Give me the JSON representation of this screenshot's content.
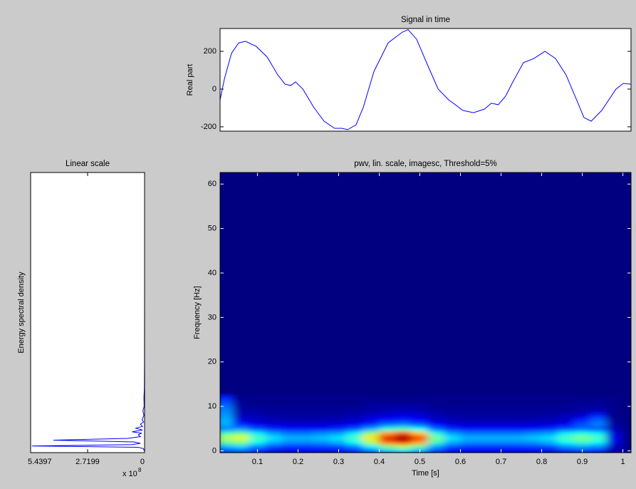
{
  "chart_data": [
    {
      "type": "line",
      "title": "Signal in time",
      "ylabel": "Real part",
      "color": "#0000ff",
      "x": [
        0.008,
        0.019,
        0.036,
        0.054,
        0.071,
        0.097,
        0.124,
        0.15,
        0.168,
        0.182,
        0.194,
        0.212,
        0.238,
        0.264,
        0.29,
        0.308,
        0.322,
        0.343,
        0.361,
        0.387,
        0.422,
        0.457,
        0.471,
        0.492,
        0.518,
        0.545,
        0.571,
        0.606,
        0.632,
        0.659,
        0.676,
        0.693,
        0.711,
        0.729,
        0.755,
        0.781,
        0.808,
        0.834,
        0.86,
        0.886,
        0.904,
        0.922,
        0.948,
        0.983,
        1.001,
        1.02
      ],
      "values": [
        -57,
        57,
        189,
        245,
        253,
        226,
        170,
        75,
        26,
        19,
        38,
        0,
        -94,
        -170,
        -208,
        -208,
        -215,
        -189,
        -94,
        94,
        245,
        302,
        315,
        264,
        132,
        0,
        -57,
        -113,
        -125,
        -106,
        -75,
        -83,
        -38,
        38,
        140,
        162,
        200,
        162,
        75,
        -57,
        -151,
        -170,
        -113,
        0,
        30,
        26
      ],
      "xlim": [
        0.008,
        1.02
      ],
      "ylim": [
        -223,
        321
      ],
      "yticks": [
        -200,
        0,
        200
      ]
    },
    {
      "type": "line",
      "orientation": "horizontal",
      "title": "Linear scale",
      "ylabel": "Energy spectral density",
      "color": "#0000ff",
      "y": [
        0,
        0.5,
        0.8,
        1.1,
        1.4,
        1.7,
        2.0,
        2.4,
        2.8,
        3.2,
        3.6,
        4.0,
        4.3,
        4.7,
        5.1,
        5.5,
        6,
        6.5,
        7,
        8,
        9,
        10,
        12,
        14,
        20,
        40,
        62.6
      ],
      "values": [
        0.02,
        0.05,
        0.3,
        5.38,
        0.6,
        0.2,
        0.5,
        4.35,
        0.8,
        0.2,
        0.3,
        0.15,
        0.6,
        0.1,
        0.44,
        0.1,
        0.2,
        0.05,
        0.12,
        0.03,
        0.08,
        0.02,
        0.03,
        0.01,
        0.005,
        0,
        0
      ],
      "xlim": [
        0,
        5.4397
      ],
      "x_reversed": true,
      "xticks": [
        5.4397,
        2.7199,
        0
      ],
      "x_scale_base": "x 10",
      "x_scale_exponent": "8",
      "ylim": [
        -0.4,
        62.6
      ]
    },
    {
      "type": "heatmap",
      "title": "pwv, lin. scale, imagesc, Threshold=5%",
      "xlabel": "Time [s]",
      "ylabel": "Frequency [Hz]",
      "colormap": "jet",
      "clim": [
        0,
        1
      ],
      "x": [
        0.02,
        0.06,
        0.1,
        0.14,
        0.18,
        0.22,
        0.26,
        0.3,
        0.34,
        0.38,
        0.42,
        0.46,
        0.5,
        0.54,
        0.58,
        0.62,
        0.66,
        0.7,
        0.74,
        0.78,
        0.82,
        0.86,
        0.9,
        0.94,
        0.98
      ],
      "y": [
        0,
        1,
        2,
        3,
        4,
        5,
        6,
        7,
        8,
        9,
        10,
        11,
        12
      ],
      "z": [
        [
          0.19,
          0.21,
          0.16,
          0.12,
          0.11,
          0.11,
          0.11,
          0.12,
          0.16,
          0.23,
          0.32,
          0.35,
          0.3,
          0.18,
          0.12,
          0.11,
          0.11,
          0.11,
          0.11,
          0.11,
          0.12,
          0.16,
          0.18,
          0.16,
          0.04
        ],
        [
          0.3,
          0.33,
          0.25,
          0.19,
          0.17,
          0.17,
          0.18,
          0.19,
          0.25,
          0.36,
          0.5,
          0.55,
          0.47,
          0.28,
          0.19,
          0.17,
          0.17,
          0.17,
          0.17,
          0.18,
          0.19,
          0.25,
          0.28,
          0.25,
          0.06
        ],
        [
          0.47,
          0.51,
          0.38,
          0.3,
          0.26,
          0.26,
          0.27,
          0.3,
          0.38,
          0.55,
          0.77,
          0.85,
          0.72,
          0.43,
          0.3,
          0.26,
          0.26,
          0.26,
          0.26,
          0.27,
          0.3,
          0.38,
          0.43,
          0.38,
          0.09
        ],
        [
          0.55,
          0.6,
          0.45,
          0.35,
          0.3,
          0.3,
          0.32,
          0.35,
          0.45,
          0.65,
          0.9,
          1.0,
          0.85,
          0.5,
          0.35,
          0.3,
          0.3,
          0.3,
          0.3,
          0.32,
          0.35,
          0.45,
          0.5,
          0.45,
          0.1
        ],
        [
          0.44,
          0.48,
          0.36,
          0.28,
          0.24,
          0.24,
          0.26,
          0.28,
          0.36,
          0.52,
          0.72,
          0.8,
          0.68,
          0.4,
          0.28,
          0.24,
          0.24,
          0.24,
          0.24,
          0.26,
          0.28,
          0.36,
          0.4,
          0.36,
          0.08
        ],
        [
          0.25,
          0.27,
          0.2,
          0.16,
          0.14,
          0.14,
          0.14,
          0.16,
          0.2,
          0.29,
          0.41,
          0.45,
          0.38,
          0.23,
          0.16,
          0.14,
          0.14,
          0.14,
          0.14,
          0.14,
          0.16,
          0.2,
          0.23,
          0.2,
          0.05
        ],
        [
          0.3,
          0.15,
          0.11,
          0.09,
          0.08,
          0.08,
          0.08,
          0.09,
          0.11,
          0.16,
          0.23,
          0.25,
          0.21,
          0.13,
          0.09,
          0.08,
          0.08,
          0.08,
          0.08,
          0.08,
          0.09,
          0.11,
          0.2,
          0.25,
          0.03
        ],
        [
          0.3,
          0.09,
          0.07,
          0.05,
          0.05,
          0.05,
          0.05,
          0.05,
          0.07,
          0.1,
          0.14,
          0.15,
          0.13,
          0.08,
          0.05,
          0.05,
          0.05,
          0.05,
          0.05,
          0.05,
          0.05,
          0.07,
          0.15,
          0.22,
          0.02
        ],
        [
          0.28,
          0.06,
          0.05,
          0.04,
          0.03,
          0.03,
          0.03,
          0.04,
          0.05,
          0.07,
          0.09,
          0.1,
          0.09,
          0.05,
          0.04,
          0.03,
          0.03,
          0.03,
          0.03,
          0.03,
          0.04,
          0.05,
          0.08,
          0.15,
          0.01
        ],
        [
          0.26,
          0.04,
          0.03,
          0.02,
          0.02,
          0.02,
          0.02,
          0.02,
          0.03,
          0.04,
          0.05,
          0.06,
          0.05,
          0.03,
          0.02,
          0.02,
          0.02,
          0.02,
          0.02,
          0.02,
          0.02,
          0.03,
          0.04,
          0.06,
          0.01
        ],
        [
          0.24,
          0.03,
          0.02,
          0.02,
          0.02,
          0.02,
          0.02,
          0.02,
          0.02,
          0.03,
          0.04,
          0.04,
          0.04,
          0.02,
          0.02,
          0.02,
          0.02,
          0.02,
          0.02,
          0.02,
          0.02,
          0.02,
          0.03,
          0.03,
          0.01
        ],
        [
          0.2,
          0.02,
          0.01,
          0.01,
          0.01,
          0.01,
          0.01,
          0.01,
          0.01,
          0.02,
          0.02,
          0.02,
          0.02,
          0.01,
          0.01,
          0.01,
          0.01,
          0.01,
          0.01,
          0.01,
          0.01,
          0.01,
          0.02,
          0.02,
          0.01
        ],
        [
          0.16,
          0.01,
          0.01,
          0.01,
          0.01,
          0.01,
          0.01,
          0.01,
          0.01,
          0.01,
          0.01,
          0.01,
          0.01,
          0.01,
          0.01,
          0.01,
          0.01,
          0.01,
          0.01,
          0.01,
          0.01,
          0.01,
          0.01,
          0.01,
          0.01
        ]
      ],
      "xlim": [
        0.008,
        1.02
      ],
      "xticks": [
        0.1,
        0.2,
        0.3,
        0.4,
        0.5,
        0.6,
        0.7,
        0.8,
        0.9,
        1
      ],
      "ylim": [
        -0.4,
        62.6
      ],
      "yticks": [
        0,
        10,
        20,
        30,
        40,
        50,
        60
      ]
    }
  ]
}
